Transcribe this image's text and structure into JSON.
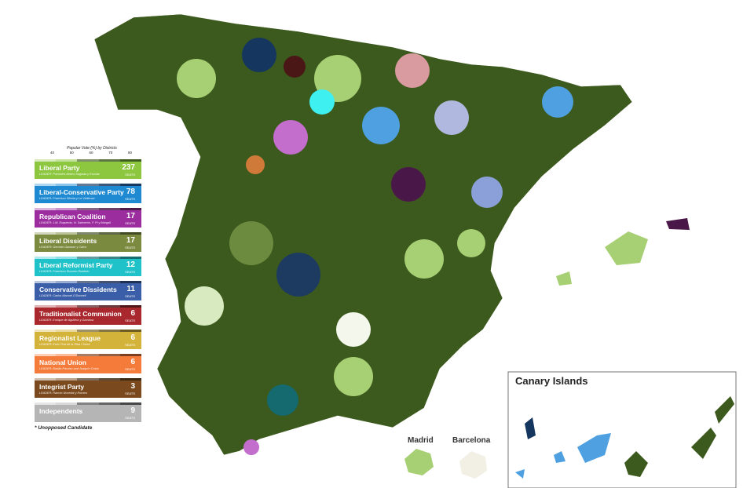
{
  "legend": {
    "scale_title": "Popular Vote (%) by Districts",
    "scale_ticks": [
      "40",
      "50",
      "60",
      "70",
      "80"
    ],
    "parties": [
      {
        "name": "Liberal Party",
        "leader": "LEADER: Práxedes Mateo-Sagasta y Escolar",
        "seats": "237",
        "seats_label": "SEATS",
        "color": "#8dc63f",
        "dark": "#3d5a1e"
      },
      {
        "name": "Liberal-Conservative Party",
        "leader": "LEADER: Francisco Silvela y Le Vielleuze",
        "seats": "78",
        "seats_label": "SEATS",
        "color": "#1f8ad1",
        "dark": "#15365e"
      },
      {
        "name": "Republican Coalition",
        "leader": "LEADER: J.M. Esquerdo, N. Salmerón, F. Pi y Margall",
        "seats": "17",
        "seats_label": "SEATS",
        "color": "#9b2d9f",
        "dark": "#4a1848"
      },
      {
        "name": "Liberal Dissidents",
        "leader": "LEADER: Germán Gamazo y Calvo",
        "seats": "17",
        "seats_label": "SEATS",
        "color": "#7a8a3e",
        "dark": "#3f4a22"
      },
      {
        "name": "Liberal Reformist Party",
        "leader": "LEADER: Francisco Romero Robledo",
        "seats": "12",
        "seats_label": "SEATS",
        "color": "#1fc2c8",
        "dark": "#146a6e"
      },
      {
        "name": "Conservative Dissidents",
        "leader": "LEADER: Carlos Manuel O'Donnell",
        "seats": "11",
        "seats_label": "SEATS",
        "color": "#3a5ea8",
        "dark": "#1d2f55"
      },
      {
        "name": "Traditionalist Communion",
        "leader": "LEADER: Enrique de Aguilera y Gamboa",
        "seats": "6",
        "seats_label": "SEATS",
        "color": "#a8282e",
        "dark": "#4e1416"
      },
      {
        "name": "Regionalist League",
        "leader": "LEADER: Enric Prat de la Riba i Sarrà",
        "seats": "6",
        "seats_label": "SEATS",
        "color": "#d4b33a",
        "dark": "#6a5a1d"
      },
      {
        "name": "National Union",
        "leader": "LEADER: Basilio Paraíso and Joaquín Costa",
        "seats": "6",
        "seats_label": "SEATS",
        "color": "#f47b3a",
        "dark": "#7a3d1d"
      },
      {
        "name": "Integrist Party",
        "leader": "LEADER: Ramón Nocedal y Romea",
        "seats": "3",
        "seats_label": "SEATS",
        "color": "#7a4a1e",
        "dark": "#3d250f"
      },
      {
        "name": "Independents",
        "leader": "",
        "seats": "9",
        "seats_label": "SEATS",
        "color": "#b5b5b5",
        "dark": "#444444"
      }
    ],
    "note": "* Unopposed Candidate"
  },
  "insets": {
    "canary": "Canary Islands",
    "madrid": "Madrid",
    "barcelona": "Barcelona"
  }
}
